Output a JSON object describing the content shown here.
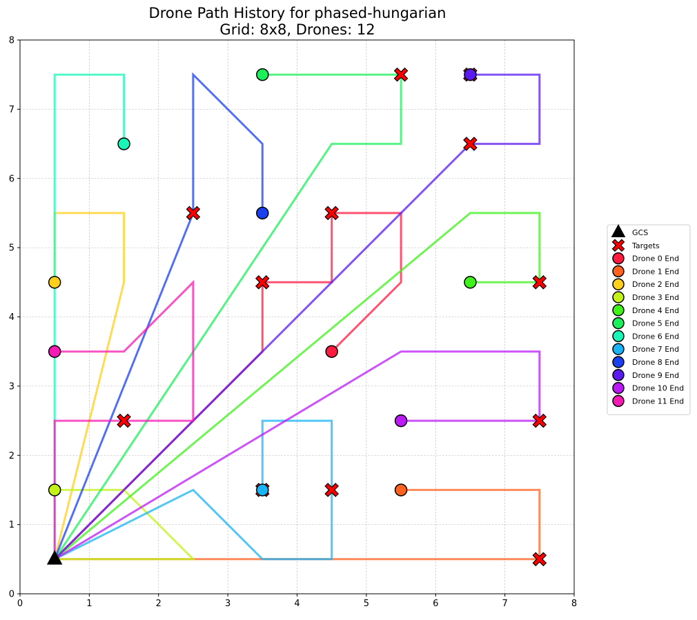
{
  "chart_data": {
    "type": "line",
    "title": "Drone Path History for phased-hungarian",
    "subtitle": "Grid: 8x8, Drones: 12",
    "xlabel": "",
    "ylabel": "",
    "xlim": [
      0,
      8
    ],
    "ylim": [
      0,
      8
    ],
    "xticks": [
      "0",
      "1",
      "2",
      "3",
      "4",
      "5",
      "6",
      "7",
      "8"
    ],
    "yticks": [
      "0",
      "1",
      "2",
      "3",
      "4",
      "5",
      "6",
      "7",
      "8"
    ],
    "grid": true,
    "legend_position": "right",
    "gcs": {
      "label": "GCS",
      "x": 0.5,
      "y": 0.5,
      "color": "#000000"
    },
    "targets": {
      "label": "Targets",
      "color": "#ff0000",
      "points": [
        [
          2.5,
          5.5
        ],
        [
          5.5,
          7.5
        ],
        [
          6.5,
          7.5
        ],
        [
          6.5,
          6.5
        ],
        [
          4.5,
          5.5
        ],
        [
          3.5,
          4.5
        ],
        [
          7.5,
          4.5
        ],
        [
          1.5,
          2.5
        ],
        [
          7.5,
          2.5
        ],
        [
          3.5,
          1.5
        ],
        [
          4.5,
          1.5
        ],
        [
          7.5,
          0.5
        ]
      ]
    },
    "series": [
      {
        "name": "Drone 0 End",
        "color": "#ff1a40",
        "path": [
          [
            0.5,
            0.5
          ],
          [
            3.5,
            3.5
          ],
          [
            3.5,
            4.5
          ],
          [
            4.5,
            4.5
          ],
          [
            4.5,
            5.5
          ],
          [
            5.5,
            5.5
          ],
          [
            5.5,
            4.5
          ],
          [
            4.5,
            3.5
          ]
        ]
      },
      {
        "name": "Drone 1 End",
        "color": "#ff6120",
        "path": [
          [
            0.5,
            0.5
          ],
          [
            7.5,
            0.5
          ],
          [
            7.5,
            1.5
          ],
          [
            5.5,
            1.5
          ]
        ]
      },
      {
        "name": "Drone 2 End",
        "color": "#ffcf1a",
        "path": [
          [
            0.5,
            0.5
          ],
          [
            1.5,
            4.5
          ],
          [
            1.5,
            5.5
          ],
          [
            0.5,
            5.5
          ],
          [
            0.5,
            4.5
          ]
        ]
      },
      {
        "name": "Drone 3 End",
        "color": "#c2f21a",
        "path": [
          [
            0.5,
            0.5
          ],
          [
            2.5,
            0.5
          ],
          [
            1.5,
            1.5
          ],
          [
            0.5,
            1.5
          ]
        ]
      },
      {
        "name": "Drone 4 End",
        "color": "#3ff21a",
        "path": [
          [
            0.5,
            0.5
          ],
          [
            6.5,
            5.5
          ],
          [
            7.5,
            5.5
          ],
          [
            7.5,
            4.5
          ],
          [
            6.5,
            4.5
          ]
        ]
      },
      {
        "name": "Drone 5 End",
        "color": "#1af05a",
        "path": [
          [
            0.5,
            0.5
          ],
          [
            4.5,
            6.5
          ],
          [
            5.5,
            6.5
          ],
          [
            5.5,
            7.5
          ],
          [
            3.5,
            7.5
          ]
        ]
      },
      {
        "name": "Drone 6 End",
        "color": "#1af5b8",
        "path": [
          [
            0.5,
            0.5
          ],
          [
            0.5,
            7.5
          ],
          [
            1.5,
            7.5
          ],
          [
            1.5,
            6.5
          ]
        ]
      },
      {
        "name": "Drone 7 End",
        "color": "#1ab3f5",
        "path": [
          [
            0.5,
            0.5
          ],
          [
            2.5,
            1.5
          ],
          [
            3.5,
            0.5
          ],
          [
            4.5,
            0.5
          ],
          [
            4.5,
            2.5
          ],
          [
            3.5,
            2.5
          ],
          [
            3.5,
            1.5
          ]
        ]
      },
      {
        "name": "Drone 8 End",
        "color": "#1a40f0",
        "path": [
          [
            0.5,
            0.5
          ],
          [
            2.5,
            5.5
          ],
          [
            2.5,
            7.5
          ],
          [
            3.5,
            6.5
          ],
          [
            3.5,
            5.5
          ]
        ]
      },
      {
        "name": "Drone 9 End",
        "color": "#5a1af0",
        "path": [
          [
            0.5,
            0.5
          ],
          [
            6.5,
            6.5
          ],
          [
            7.5,
            6.5
          ],
          [
            7.5,
            7.5
          ],
          [
            6.5,
            7.5
          ]
        ]
      },
      {
        "name": "Drone 10 End",
        "color": "#bb1af5",
        "path": [
          [
            0.5,
            0.5
          ],
          [
            5.5,
            3.5
          ],
          [
            7.5,
            3.5
          ],
          [
            7.5,
            2.5
          ],
          [
            5.5,
            2.5
          ]
        ]
      },
      {
        "name": "Drone 11 End",
        "color": "#f51ab3",
        "path": [
          [
            0.5,
            0.5
          ],
          [
            0.5,
            2.5
          ],
          [
            2.5,
            2.5
          ],
          [
            2.5,
            4.5
          ],
          [
            1.5,
            3.5
          ],
          [
            0.5,
            3.5
          ]
        ]
      }
    ]
  }
}
